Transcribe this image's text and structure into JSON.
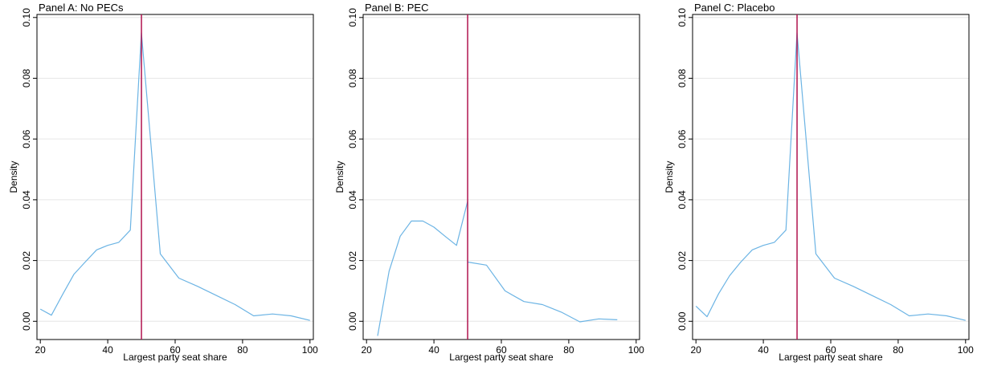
{
  "colors": {
    "series": "#6cb4e4",
    "cutoff": "#b0134e",
    "grid": "#e6e6e6",
    "frame": "#000000"
  },
  "chart_data": [
    {
      "type": "line",
      "title": "Panel A: No PECs",
      "xlabel": "Largest party seat share",
      "ylabel": "Density",
      "xlim": [
        19,
        101
      ],
      "ylim": [
        -0.006,
        0.101
      ],
      "xticks": [
        "20",
        "40",
        "60",
        "80",
        "100"
      ],
      "yticks": [
        "0.00",
        "0.02",
        "0.04",
        "0.06",
        "0.08",
        "0.10"
      ],
      "grid": true,
      "cutoff": 50,
      "series": [
        {
          "x": [
            20,
            23.3,
            26.7,
            30,
            33.3,
            36.7,
            40,
            43.3,
            46.7,
            50,
            55.6,
            61.1,
            66.7,
            72.2,
            77.8,
            83.3,
            88.9,
            94.4,
            100
          ],
          "y": [
            0.004,
            0.002,
            0.009,
            0.0155,
            0.0195,
            0.0235,
            0.025,
            0.026,
            0.03,
            0.095,
            0.0222,
            0.0142,
            0.0115,
            0.0085,
            0.0055,
            0.0018,
            0.0024,
            0.0018,
            0.0003
          ]
        }
      ]
    },
    {
      "type": "line",
      "title": "Panel B: PEC",
      "xlabel": "Largest party seat share",
      "ylabel": "Density",
      "xlim": [
        19,
        101
      ],
      "ylim": [
        -0.006,
        0.101
      ],
      "xticks": [
        "20",
        "40",
        "60",
        "80",
        "100"
      ],
      "yticks": [
        "0.00",
        "0.02",
        "0.04",
        "0.06",
        "0.08",
        "0.10"
      ],
      "grid": true,
      "cutoff": 50,
      "series": [
        {
          "x": [
            23.3,
            26.7,
            30,
            33.3,
            36.7,
            40,
            43.3,
            46.7,
            50
          ],
          "y": [
            -0.0048,
            0.0165,
            0.028,
            0.033,
            0.033,
            0.031,
            0.028,
            0.025,
            0.0395
          ]
        },
        {
          "x": [
            50,
            55.6,
            61.1,
            66.7,
            72.2,
            77.8,
            83.3,
            88.9,
            94.4
          ],
          "y": [
            0.0195,
            0.0185,
            0.01,
            0.0065,
            0.0055,
            0.003,
            -0.0002,
            0.0008,
            0.0005
          ]
        }
      ]
    },
    {
      "type": "line",
      "title": "Panel C: Placebo",
      "xlabel": "Largest party seat share",
      "ylabel": "Density",
      "xlim": [
        19,
        101
      ],
      "ylim": [
        -0.006,
        0.101
      ],
      "xticks": [
        "20",
        "40",
        "60",
        "80",
        "100"
      ],
      "yticks": [
        "0.00",
        "0.02",
        "0.04",
        "0.06",
        "0.08",
        "0.10"
      ],
      "grid": true,
      "cutoff": 50,
      "series": [
        {
          "x": [
            20,
            23.3,
            26.7,
            30,
            33.3,
            36.7,
            40,
            43.3,
            46.7,
            50,
            55.6,
            61.1,
            66.7,
            72.2,
            77.8,
            83.3,
            88.9,
            94.4,
            100
          ],
          "y": [
            0.005,
            0.0015,
            0.009,
            0.015,
            0.0195,
            0.0235,
            0.025,
            0.026,
            0.03,
            0.095,
            0.0222,
            0.0142,
            0.0115,
            0.0085,
            0.0055,
            0.0018,
            0.0024,
            0.0018,
            0.0003
          ]
        }
      ]
    }
  ]
}
